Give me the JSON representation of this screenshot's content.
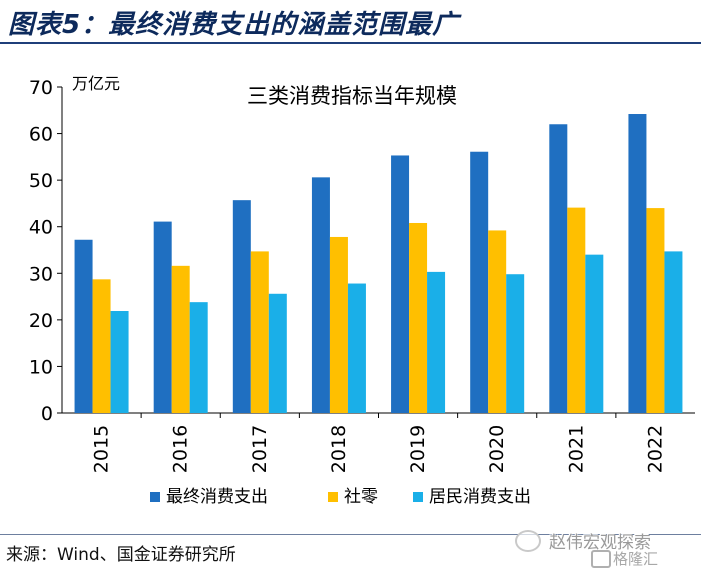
{
  "header": {
    "title": "图表5：最终消费支出的涵盖范围最广"
  },
  "source": {
    "text": "来源：Wind、国金证券研究所"
  },
  "watermark": {
    "line1": "赵伟宏观探索",
    "line2": "格隆汇"
  },
  "colors": {
    "series1": "#1f6fc1",
    "series2": "#ffbf00",
    "series3": "#1aafe8",
    "title": "#0d2a5c"
  },
  "chart_data": {
    "type": "bar",
    "title": "三类消费指标当年规模",
    "ylabel": "万亿元",
    "ylim": [
      0,
      70
    ],
    "yticks": [
      0,
      10,
      20,
      30,
      40,
      50,
      60,
      70
    ],
    "categories": [
      "2015",
      "2016",
      "2017",
      "2018",
      "2019",
      "2020",
      "2021",
      "2022"
    ],
    "series": [
      {
        "name": "最终消费支出",
        "color": "#1f6fc1",
        "values": [
          37.2,
          41.1,
          45.7,
          50.6,
          55.3,
          56.1,
          62.0,
          64.2
        ]
      },
      {
        "name": "社零",
        "color": "#ffbf00",
        "values": [
          28.7,
          31.6,
          34.7,
          37.8,
          40.8,
          39.2,
          44.1,
          44.0
        ]
      },
      {
        "name": "居民消费支出",
        "color": "#1aafe8",
        "values": [
          21.9,
          23.8,
          25.6,
          27.8,
          30.3,
          29.8,
          34.0,
          34.7
        ]
      }
    ],
    "legend": "bottom",
    "grid": false
  }
}
